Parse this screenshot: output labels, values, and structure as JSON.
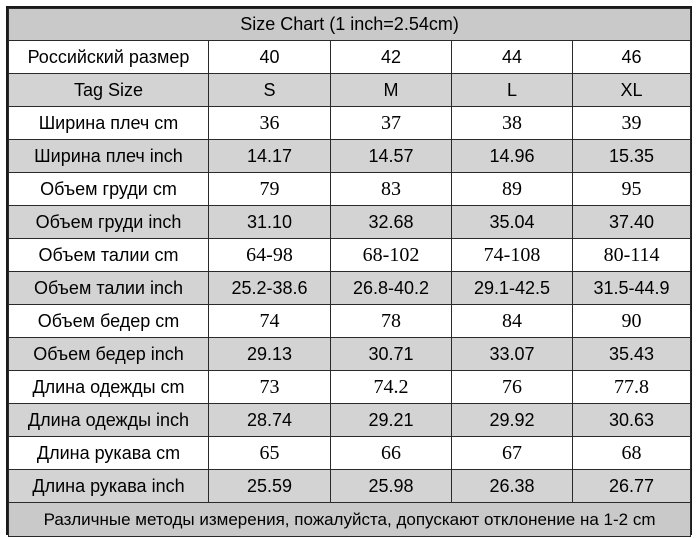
{
  "title": "Size Chart (1 inch=2.54cm)",
  "rows": [
    {
      "label": "Российский размер",
      "values": [
        "40",
        "42",
        "44",
        "46"
      ],
      "shaded": false,
      "serif": false
    },
    {
      "label": "Tag Size",
      "values": [
        "S",
        "M",
        "L",
        "XL"
      ],
      "shaded": true,
      "serif": false
    },
    {
      "label": "Ширина плеч cm",
      "values": [
        "36",
        "37",
        "38",
        "39"
      ],
      "shaded": false,
      "serif": true
    },
    {
      "label": "Ширина плеч inch",
      "values": [
        "14.17",
        "14.57",
        "14.96",
        "15.35"
      ],
      "shaded": true,
      "serif": false
    },
    {
      "label": "Объем груди cm",
      "values": [
        "79",
        "83",
        "89",
        "95"
      ],
      "shaded": false,
      "serif": true
    },
    {
      "label": "Объем груди inch",
      "values": [
        "31.10",
        "32.68",
        "35.04",
        "37.40"
      ],
      "shaded": true,
      "serif": false
    },
    {
      "label": "Объем талии cm",
      "values": [
        "64-98",
        "68-102",
        "74-108",
        "80-114"
      ],
      "shaded": false,
      "serif": true
    },
    {
      "label": "Объем талии inch",
      "values": [
        "25.2-38.6",
        "26.8-40.2",
        "29.1-42.5",
        "31.5-44.9"
      ],
      "shaded": true,
      "serif": false
    },
    {
      "label": "Объем бедер cm",
      "values": [
        "74",
        "78",
        "84",
        "90"
      ],
      "shaded": false,
      "serif": true
    },
    {
      "label": "Объем бедер inch",
      "values": [
        "29.13",
        "30.71",
        "33.07",
        "35.43"
      ],
      "shaded": true,
      "serif": false
    },
    {
      "label": "Длина одежды cm",
      "values": [
        "73",
        "74.2",
        "76",
        "77.8"
      ],
      "shaded": false,
      "serif": true
    },
    {
      "label": "Длина одежды inch",
      "values": [
        "28.74",
        "29.21",
        "29.92",
        "30.63"
      ],
      "shaded": true,
      "serif": false
    },
    {
      "label": "Длина рукава cm",
      "values": [
        "65",
        "66",
        "67",
        "68"
      ],
      "shaded": false,
      "serif": true
    },
    {
      "label": "Длина рукава inch",
      "values": [
        "25.59",
        "25.98",
        "26.38",
        "26.77"
      ],
      "shaded": true,
      "serif": false
    }
  ],
  "footer": "Различные методы измерения, пожалуйста, допускают отклонение на 1-2 cm"
}
